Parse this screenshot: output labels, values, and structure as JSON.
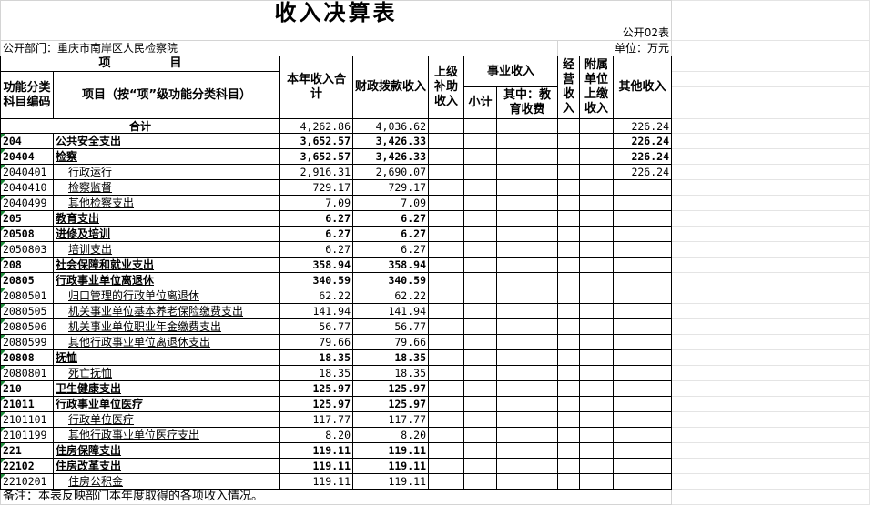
{
  "title": "收入决算表",
  "form_no": "公开02表",
  "department": "公开部门：重庆市南岸区人民检察院",
  "unit": "单位：万元",
  "headers": {
    "item": "项　　　　　目",
    "code": "功能分类科目编码",
    "item_name": "项目（按“项”级功能分类科目）",
    "total_income": "本年收入合计",
    "fiscal": "财政拨款收入",
    "superior": "上级补助收入",
    "business": "事业收入",
    "subtotal": "小计",
    "education": "其中：教育收费",
    "operating": "经营收入",
    "affiliated": "附属单位上缴收入",
    "other": "其他收入"
  },
  "total_row": {
    "label": "合计",
    "total": "4,262.86",
    "fiscal": "4,036.62",
    "other": "226.24"
  },
  "rows": [
    {
      "code": "204",
      "name": "公共安全支出",
      "total": "3,652.57",
      "fiscal": "3,426.33",
      "other": "226.24"
    },
    {
      "code": "20404",
      "name": "检察",
      "total": "3,652.57",
      "fiscal": "3,426.33",
      "other": "226.24"
    },
    {
      "code": "2040401",
      "name": "行政运行",
      "total": "2,916.31",
      "fiscal": "2,690.07",
      "other": "226.24"
    },
    {
      "code": "2040410",
      "name": "检察监督",
      "total": "729.17",
      "fiscal": "729.17",
      "other": ""
    },
    {
      "code": "2040499",
      "name": "其他检察支出",
      "total": "7.09",
      "fiscal": "7.09",
      "other": ""
    },
    {
      "code": "205",
      "name": "教育支出",
      "total": "6.27",
      "fiscal": "6.27",
      "other": ""
    },
    {
      "code": "20508",
      "name": "进修及培训",
      "total": "6.27",
      "fiscal": "6.27",
      "other": ""
    },
    {
      "code": "2050803",
      "name": "培训支出",
      "total": "6.27",
      "fiscal": "6.27",
      "other": ""
    },
    {
      "code": "208",
      "name": "社会保障和就业支出",
      "total": "358.94",
      "fiscal": "358.94",
      "other": ""
    },
    {
      "code": "20805",
      "name": "行政事业单位离退休",
      "total": "340.59",
      "fiscal": "340.59",
      "other": ""
    },
    {
      "code": "2080501",
      "name": "归口管理的行政单位离退休",
      "total": "62.22",
      "fiscal": "62.22",
      "other": ""
    },
    {
      "code": "2080505",
      "name": "机关事业单位基本养老保险缴费支出",
      "total": "141.94",
      "fiscal": "141.94",
      "other": ""
    },
    {
      "code": "2080506",
      "name": "机关事业单位职业年金缴费支出",
      "total": "56.77",
      "fiscal": "56.77",
      "other": ""
    },
    {
      "code": "2080599",
      "name": "其他行政事业单位离退休支出",
      "total": "79.66",
      "fiscal": "79.66",
      "other": ""
    },
    {
      "code": "20808",
      "name": "抚恤",
      "total": "18.35",
      "fiscal": "18.35",
      "other": ""
    },
    {
      "code": "2080801",
      "name": "死亡抚恤",
      "total": "18.35",
      "fiscal": "18.35",
      "other": ""
    },
    {
      "code": "210",
      "name": "卫生健康支出",
      "total": "125.97",
      "fiscal": "125.97",
      "other": ""
    },
    {
      "code": "21011",
      "name": "行政事业单位医疗",
      "total": "125.97",
      "fiscal": "125.97",
      "other": ""
    },
    {
      "code": "2101101",
      "name": "行政单位医疗",
      "total": "117.77",
      "fiscal": "117.77",
      "other": ""
    },
    {
      "code": "2101199",
      "name": "其他行政事业单位医疗支出",
      "total": "8.20",
      "fiscal": "8.20",
      "other": ""
    },
    {
      "code": "221",
      "name": "住房保障支出",
      "total": "119.11",
      "fiscal": "119.11",
      "other": ""
    },
    {
      "code": "22102",
      "name": "住房改革支出",
      "total": "119.11",
      "fiscal": "119.11",
      "other": ""
    },
    {
      "code": "2210201",
      "name": "住房公积金",
      "total": "119.11",
      "fiscal": "119.11",
      "other": ""
    }
  ],
  "note": "备注：本表反映部门本年度取得的各项收入情况。",
  "colors": {
    "indicator": "#1e8a3a",
    "grid": "#d4d4d4",
    "border": "#000000"
  }
}
